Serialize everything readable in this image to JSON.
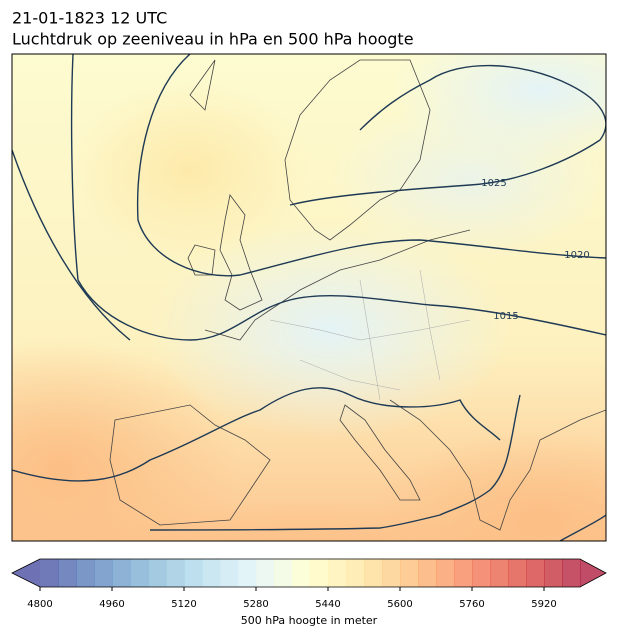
{
  "title": "21-01-1823 12 UTC",
  "subtitle": "Luchtdruk op zeeniveau in hPa en 500 hPa hoogte",
  "map": {
    "contour_labels": [
      1025,
      1020,
      1015
    ]
  },
  "colorbar": {
    "lim": [
      4800,
      6000
    ],
    "step": 40,
    "ticks": [
      4800,
      4960,
      5120,
      5280,
      5440,
      5600,
      5760,
      5920
    ],
    "label": "500 hPa hoogte in meter",
    "colormap": [
      "#313695",
      "#4575b4",
      "#74add1",
      "#abd9e9",
      "#e0f3f8",
      "#ffffbf",
      "#fee090",
      "#fdae61",
      "#f46d43",
      "#d73027",
      "#a50026"
    ],
    "alpha": 0.7
  }
}
